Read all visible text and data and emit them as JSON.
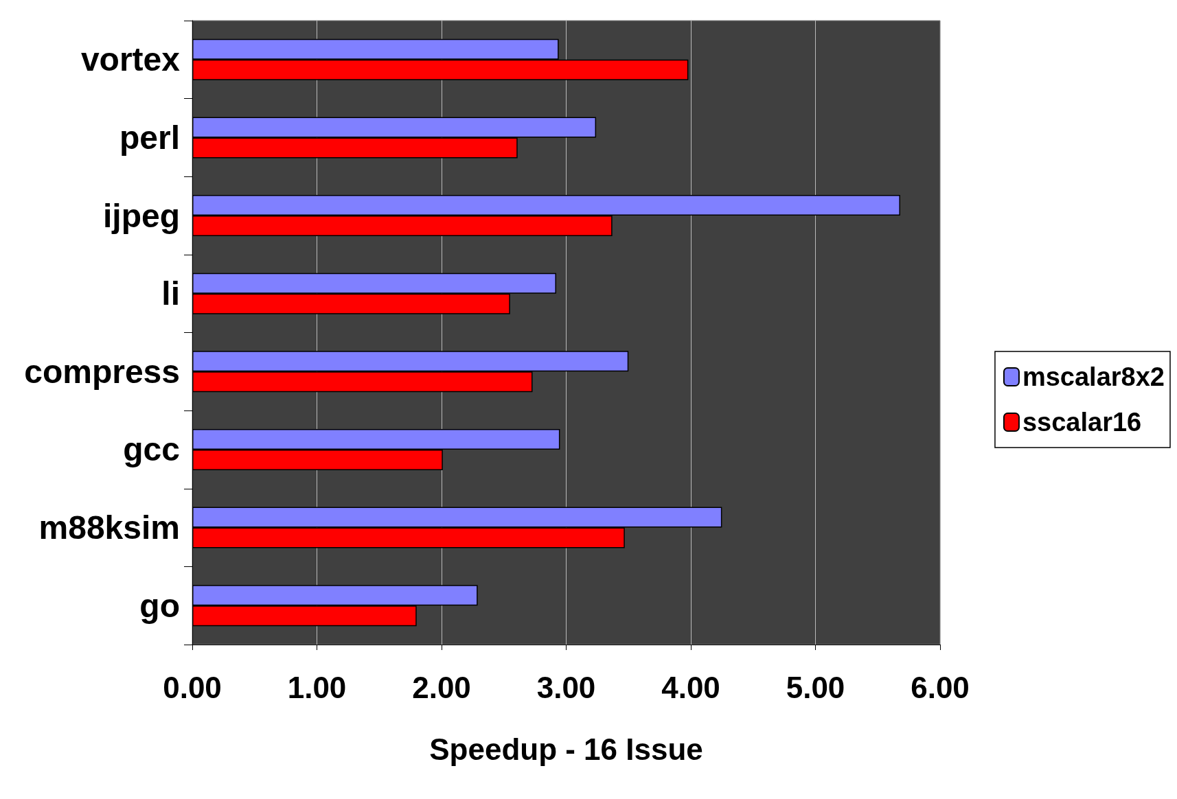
{
  "chart_data": {
    "type": "bar",
    "orientation": "horizontal",
    "xlabel": "Speedup - 16 Issue",
    "categories": [
      "vortex",
      "perl",
      "ijpeg",
      "li",
      "compress",
      "gcc",
      "m88ksim",
      "go"
    ],
    "series": [
      {
        "name": "mscalar8x2",
        "color": "#8080ff",
        "values": [
          2.94,
          3.24,
          5.68,
          2.92,
          3.5,
          2.95,
          4.25,
          2.29
        ]
      },
      {
        "name": "sscalar16",
        "color": "#ff0000",
        "values": [
          3.98,
          2.61,
          3.37,
          2.55,
          2.73,
          2.01,
          3.47,
          1.8
        ]
      }
    ],
    "xlim": [
      0,
      6
    ],
    "xticks": [
      {
        "value": 0,
        "label": "0.00"
      },
      {
        "value": 1,
        "label": "1.00"
      },
      {
        "value": 2,
        "label": "2.00"
      },
      {
        "value": 3,
        "label": "3.00"
      },
      {
        "value": 4,
        "label": "4.00"
      },
      {
        "value": 5,
        "label": "5.00"
      },
      {
        "value": 6,
        "label": "6.00"
      }
    ],
    "grid": "x",
    "legend": "right"
  }
}
